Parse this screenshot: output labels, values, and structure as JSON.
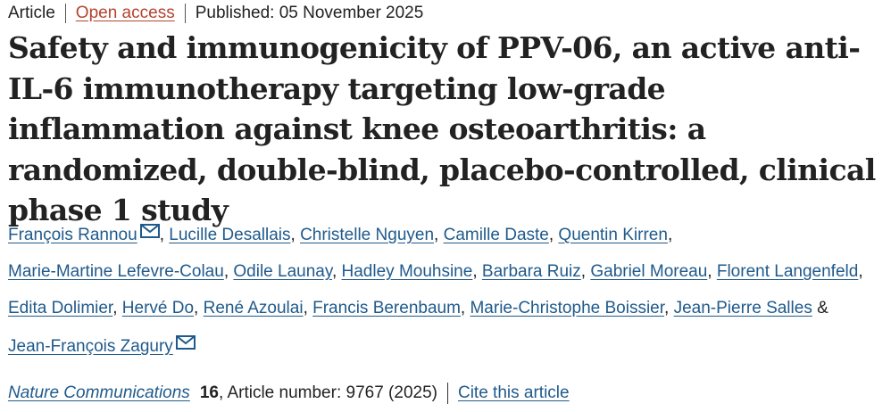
{
  "meta": {
    "type": "Article",
    "access": "Open access",
    "published": "Published: 05 November 2025"
  },
  "title": "Safety and immunogenicity of PPV-06, an active anti-IL-6 immunotherapy targeting low-grade inflammation against knee osteoarthritis: a randomized, double-blind, placebo-controlled, clinical phase 1 study",
  "authors": {
    "list": [
      "François Rannou",
      "Lucille Desallais",
      "Christelle Nguyen",
      "Camille Daste",
      "Quentin Kirren",
      "Marie-Martine Lefevre-Colau",
      "Odile Launay",
      "Hadley Mouhsine",
      "Barbara Ruiz",
      "Gabriel Moreau",
      "Florent Langenfeld",
      "Edita Dolimier",
      "Hervé Do",
      "René Azoulai",
      "Francis Berenbaum",
      "Marie-Christophe Boissier",
      "Jean-Pierre Salles",
      "Jean-François Zagury"
    ],
    "comma": ",",
    "ampersand": "&"
  },
  "journal": {
    "name": "Nature Communications",
    "volume": "16",
    "article_number": ", Article number: 9767 (2025)",
    "cite": "Cite this article"
  },
  "icons": {
    "mail": "mail-icon"
  },
  "colors": {
    "link": "#1f5a8c",
    "open_access": "#b5432d",
    "text": "#222222"
  }
}
